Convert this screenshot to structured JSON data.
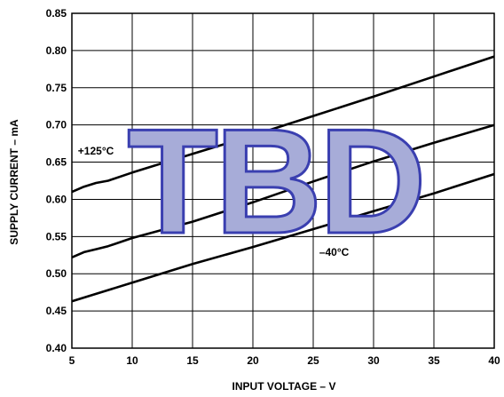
{
  "chart_data": {
    "type": "line",
    "title": "",
    "xlabel": "INPUT VOLTAGE – V",
    "ylabel": "SUPPLY CURRENT – mA",
    "xlim": [
      5,
      40
    ],
    "ylim": [
      0.4,
      0.85
    ],
    "x_ticks": [
      "5",
      "10",
      "15",
      "20",
      "25",
      "30",
      "35",
      "40"
    ],
    "y_ticks": [
      "0.40",
      "0.45",
      "0.50",
      "0.55",
      "0.60",
      "0.65",
      "0.70",
      "0.75",
      "0.80",
      "0.85"
    ],
    "grid": true,
    "series": [
      {
        "name": "+125°C",
        "x": [
          5,
          6,
          7,
          8,
          10,
          15,
          20,
          25,
          30,
          35,
          40
        ],
        "y": [
          0.61,
          0.617,
          0.622,
          0.625,
          0.636,
          0.661,
          0.686,
          0.712,
          0.738,
          0.765,
          0.792
        ]
      },
      {
        "name": "",
        "x": [
          5,
          6,
          7,
          8,
          10,
          15,
          20,
          25,
          30,
          35,
          40
        ],
        "y": [
          0.522,
          0.529,
          0.533,
          0.537,
          0.548,
          0.57,
          0.596,
          0.624,
          0.651,
          0.676,
          0.7
        ]
      },
      {
        "name": "–40°C",
        "x": [
          5,
          10,
          15,
          20,
          25,
          30,
          35,
          40
        ],
        "y": [
          0.463,
          0.488,
          0.513,
          0.536,
          0.56,
          0.584,
          0.608,
          0.634
        ]
      }
    ],
    "annotations": [
      {
        "text": "+125°C",
        "x": 5.5,
        "y": 0.66
      },
      {
        "text": "–40°C",
        "x": 25.5,
        "y": 0.524
      }
    ],
    "watermark": "TBD",
    "colors": {
      "lines": "#000000",
      "watermark_fill": "#a7acd8",
      "watermark_stroke": "#3a3fb0"
    }
  }
}
